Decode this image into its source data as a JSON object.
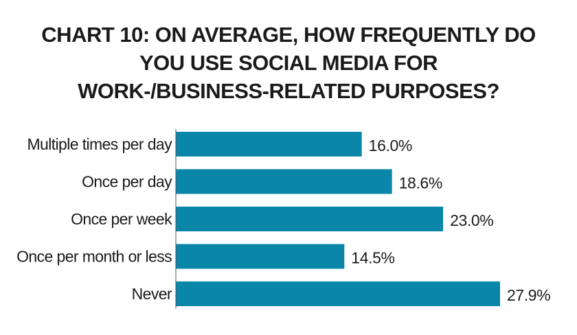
{
  "title_lines": [
    "CHART 10: ON AVERAGE, HOW FREQUENTLY DO",
    "YOU USE SOCIAL MEDIA FOR",
    "WORK-/BUSINESS-RELATED PURPOSES?"
  ],
  "colors": {
    "bar": "#0a86a8",
    "axis": "#555555"
  },
  "chart_data": {
    "type": "bar",
    "orientation": "horizontal",
    "title": "CHART 10: ON AVERAGE, HOW FREQUENTLY DO YOU USE SOCIAL MEDIA FOR WORK-/BUSINESS-RELATED PURPOSES?",
    "categories": [
      "Multiple times per day",
      "Once per day",
      "Once per week",
      "Once per month or less",
      "Never"
    ],
    "values": [
      16.0,
      18.6,
      23.0,
      14.5,
      27.9
    ],
    "value_labels": [
      "16.0%",
      "18.6%",
      "23.0%",
      "14.5%",
      "27.9%"
    ],
    "unit": "%",
    "xlim": [
      0,
      27.9
    ],
    "grid": false,
    "legend": "none"
  }
}
